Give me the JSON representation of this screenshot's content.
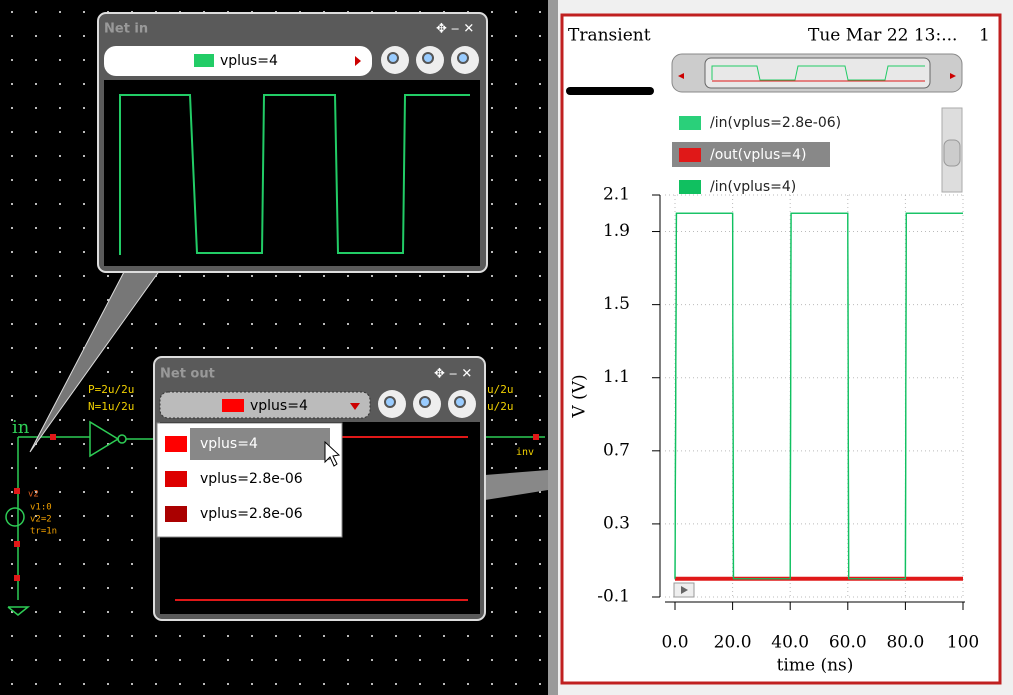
{
  "schematic": {
    "net_label": "in",
    "pmos_size": "P=2u/2u",
    "nmos_size": "N=1u/2u",
    "right_pmos_size": "u/2u",
    "right_nmos_size": "u/2u",
    "out_label": "inv",
    "source_name": "v2",
    "source_v1": "v1:0",
    "source_v2": "v2=2",
    "source_tr": "tr=1n"
  },
  "net_in_popup": {
    "title": "Net in",
    "selected": "vplus=4"
  },
  "net_out_popup": {
    "title": "Net out",
    "selected": "vplus=4",
    "menu_items": [
      "vplus=4",
      "vplus=2.8e-06",
      "vplus=2.8e-06"
    ]
  },
  "waveform_window": {
    "title": "Transient",
    "date": "Tue Mar 22 13:...",
    "page": "1"
  },
  "chart_data": {
    "type": "line",
    "x_label": "time (ns)",
    "y_label": "V (V)",
    "x": [
      0,
      0.5,
      20,
      20.3,
      40,
      40.3,
      60,
      60.3,
      80,
      80.3,
      100
    ],
    "series": [
      {
        "name": "/in(vplus=2.8e-06)",
        "color": "#2ad07a",
        "values": [
          0,
          2,
          2,
          0,
          0,
          2,
          2,
          0,
          0,
          2,
          2
        ]
      },
      {
        "name": "/out(vplus=4)",
        "color": "#e01818",
        "values": [
          0,
          0,
          0,
          0,
          0,
          0,
          0,
          0,
          0,
          0,
          0
        ]
      },
      {
        "name": "/in(vplus=4)",
        "color": "#10c060",
        "values": [
          0,
          2,
          2,
          0,
          0,
          2,
          2,
          0,
          0,
          2,
          2
        ]
      }
    ],
    "xlim": [
      0,
      100
    ],
    "ylim": [
      -0.1,
      2.1
    ],
    "xticks": [
      {
        "value": 0,
        "label": "0.0"
      },
      {
        "value": 20,
        "label": "20.0"
      },
      {
        "value": 40,
        "label": "40.0"
      },
      {
        "value": 60,
        "label": "60.0"
      },
      {
        "value": 80,
        "label": "80.0"
      },
      100
    ],
    "yticks": [
      -0.1,
      0.3,
      0.7,
      1.1,
      1.5,
      1.9,
      2.1
    ],
    "grid": true
  }
}
